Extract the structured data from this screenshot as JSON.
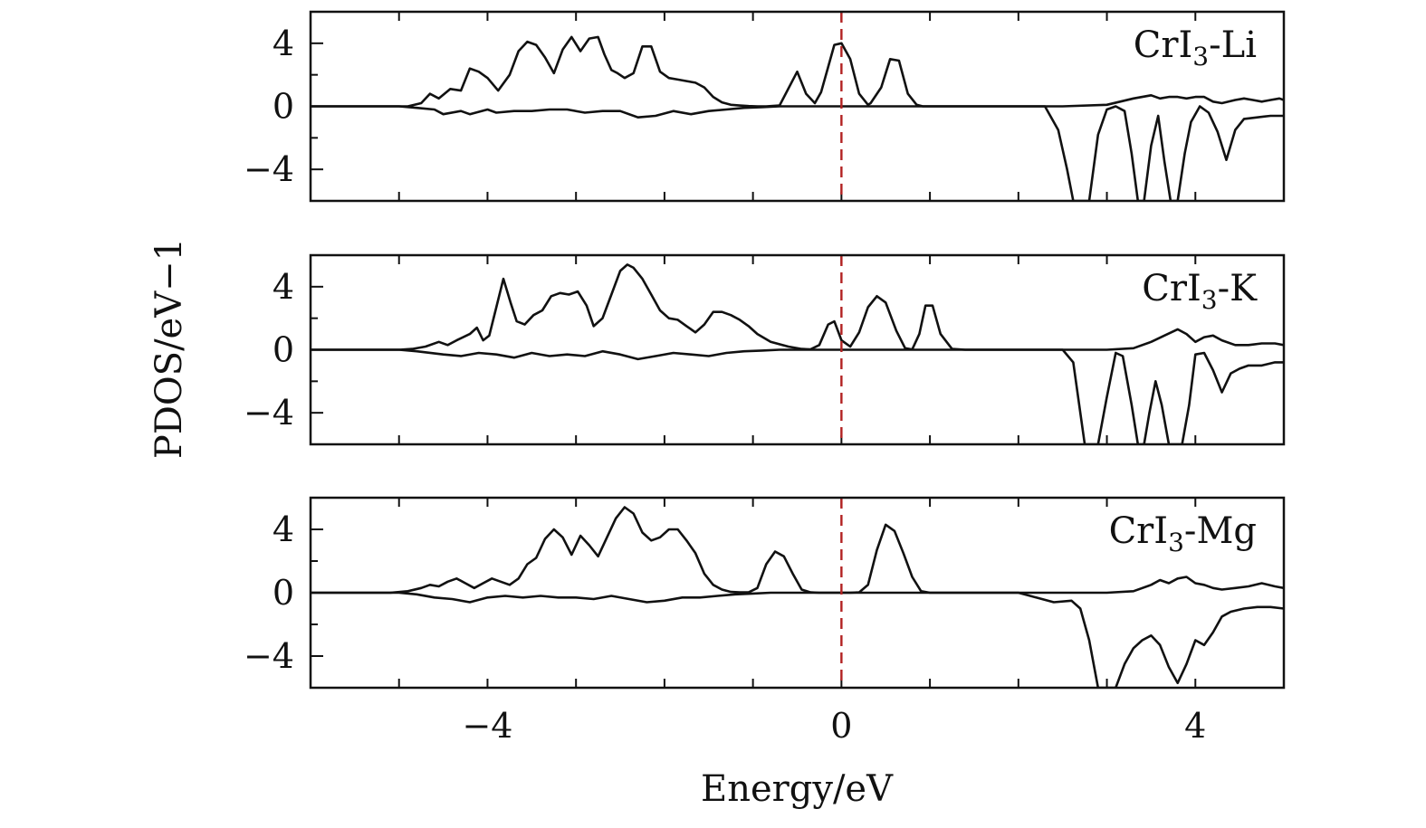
{
  "chart_data": {
    "type": "line",
    "xlabel": "Energy/eV",
    "ylabel": "PDOS/eV−1",
    "xlim": [
      -6,
      5
    ],
    "xticks": [
      -4,
      0,
      4
    ],
    "x_minor_ticks": [
      -6,
      -5,
      -4,
      -3,
      -2,
      -1,
      0,
      1,
      2,
      3,
      4,
      5
    ],
    "reference_line": {
      "x": 0,
      "style": "dashed",
      "color": "#b22222"
    },
    "legend": "none",
    "panels": [
      {
        "label": "CrI3-Li",
        "ylim": [
          -6,
          6
        ],
        "yticks": [
          4,
          0,
          -4
        ],
        "ytick_labels": [
          "4",
          "0",
          "−4"
        ],
        "series": [
          {
            "role": "spin-up",
            "x": [
              -6,
              -5,
              -4.9,
              -4.75,
              -4.65,
              -4.55,
              -4.42,
              -4.3,
              -4.2,
              -4.1,
              -4.0,
              -3.88,
              -3.75,
              -3.65,
              -3.55,
              -3.45,
              -3.35,
              -3.25,
              -3.15,
              -3.05,
              -2.95,
              -2.85,
              -2.75,
              -2.68,
              -2.6,
              -2.53,
              -2.45,
              -2.35,
              -2.25,
              -2.15,
              -2.05,
              -1.95,
              -1.85,
              -1.75,
              -1.65,
              -1.55,
              -1.45,
              -1.35,
              -1.25,
              -1.15,
              -1.05,
              -0.95,
              -0.85,
              -0.7,
              -0.5,
              -0.4,
              -0.3,
              -0.23,
              -0.15,
              -0.08,
              0,
              0.1,
              0.2,
              0.3,
              0.33,
              0.45,
              0.55,
              0.65,
              0.75,
              0.85,
              0.92,
              1.0,
              1.1,
              1.2,
              1.35,
              2,
              2.5,
              3,
              3.3,
              3.5,
              3.6,
              3.7,
              3.8,
              3.9,
              4.0,
              4.1,
              4.2,
              4.3,
              4.45,
              4.55,
              4.65,
              4.75,
              4.85,
              4.95,
              5
            ],
            "values": [
              0,
              0,
              0,
              0.2,
              0.8,
              0.5,
              1.1,
              1.0,
              2.4,
              2.2,
              1.8,
              1.0,
              2.0,
              3.5,
              4.1,
              3.9,
              3.1,
              2.1,
              3.6,
              4.4,
              3.5,
              4.3,
              4.4,
              3.3,
              2.3,
              2.1,
              1.8,
              2.1,
              3.8,
              3.8,
              2.2,
              1.8,
              1.7,
              1.6,
              1.5,
              1.2,
              0.6,
              0.25,
              0.1,
              0.05,
              0.02,
              0,
              0,
              0.05,
              2.2,
              0.8,
              0.2,
              0.9,
              2.5,
              3.9,
              4.0,
              3.0,
              0.8,
              0.1,
              0.2,
              1.2,
              3.0,
              2.9,
              0.8,
              0.1,
              0,
              0,
              0,
              0,
              0,
              0,
              0,
              0.1,
              0.5,
              0.7,
              0.5,
              0.6,
              0.6,
              0.5,
              0.6,
              0.6,
              0.3,
              0.2,
              0.4,
              0.5,
              0.4,
              0.3,
              0.4,
              0.5,
              0.4
            ]
          },
          {
            "role": "spin-down",
            "x": [
              -6,
              -5,
              -4.8,
              -4.6,
              -4.5,
              -4.3,
              -4.2,
              -4.0,
              -3.9,
              -3.7,
              -3.5,
              -3.3,
              -3.1,
              -2.9,
              -2.7,
              -2.5,
              -2.3,
              -2.1,
              -1.9,
              -1.7,
              -1.5,
              -1.3,
              -1.1,
              -0.9,
              -0.7,
              2.3,
              2.45,
              2.55,
              2.62,
              2.7,
              2.8,
              2.9,
              3.0,
              3.1,
              3.2,
              3.28,
              3.35,
              3.42,
              3.5,
              3.58,
              3.65,
              3.72,
              3.8,
              3.88,
              3.95,
              4.05,
              4.15,
              4.25,
              4.35,
              4.45,
              4.55,
              4.7,
              4.85,
              5
            ],
            "values": [
              0,
              0,
              -0.1,
              -0.2,
              -0.5,
              -0.3,
              -0.5,
              -0.2,
              -0.4,
              -0.3,
              -0.3,
              -0.2,
              -0.2,
              -0.4,
              -0.3,
              -0.3,
              -0.7,
              -0.6,
              -0.3,
              -0.5,
              -0.3,
              -0.2,
              -0.1,
              -0.05,
              0,
              0,
              -1.5,
              -4.0,
              -6,
              -6,
              -6,
              -1.8,
              -0.2,
              0,
              -0.3,
              -3.0,
              -6,
              -6,
              -2.5,
              -0.6,
              -3.5,
              -6,
              -6,
              -3.0,
              -1.0,
              0,
              -0.4,
              -1.6,
              -3.4,
              -1.5,
              -0.8,
              -0.7,
              -0.6,
              -0.6
            ]
          }
        ]
      },
      {
        "label": "CrI3-K",
        "ylim": [
          -6,
          6
        ],
        "yticks": [
          4,
          0,
          -4
        ],
        "ytick_labels": [
          "4",
          "0",
          "−4"
        ],
        "series": [
          {
            "role": "spin-up",
            "x": [
              -6,
              -5,
              -4.85,
              -4.7,
              -4.55,
              -4.45,
              -4.35,
              -4.2,
              -4.12,
              -4.05,
              -3.98,
              -3.9,
              -3.82,
              -3.74,
              -3.67,
              -3.58,
              -3.48,
              -3.38,
              -3.28,
              -3.18,
              -3.08,
              -2.98,
              -2.88,
              -2.8,
              -2.7,
              -2.6,
              -2.5,
              -2.42,
              -2.35,
              -2.25,
              -2.15,
              -2.05,
              -1.95,
              -1.85,
              -1.75,
              -1.65,
              -1.55,
              -1.45,
              -1.35,
              -1.25,
              -1.15,
              -1.05,
              -0.95,
              -0.8,
              -0.6,
              -0.45,
              -0.35,
              -0.25,
              -0.15,
              -0.08,
              0,
              0.1,
              0.2,
              0.3,
              0.4,
              0.5,
              0.62,
              0.72,
              0.8,
              0.88,
              0.95,
              1.03,
              1.12,
              1.25,
              1.4,
              2,
              2.5,
              3,
              3.3,
              3.5,
              3.65,
              3.8,
              3.9,
              4.0,
              4.1,
              4.2,
              4.3,
              4.45,
              4.6,
              4.75,
              4.9,
              5
            ],
            "values": [
              0,
              0,
              0.05,
              0.2,
              0.5,
              0.3,
              0.6,
              1.0,
              1.4,
              0.6,
              0.9,
              2.7,
              4.5,
              3.0,
              1.8,
              1.6,
              2.2,
              2.5,
              3.4,
              3.6,
              3.5,
              3.7,
              2.8,
              1.5,
              2.0,
              3.5,
              5.0,
              5.4,
              5.2,
              4.5,
              3.5,
              2.5,
              2.0,
              1.9,
              1.5,
              1.1,
              1.6,
              2.4,
              2.4,
              2.2,
              1.9,
              1.5,
              1.0,
              0.5,
              0.2,
              0.05,
              0.03,
              0.3,
              1.6,
              1.8,
              0.6,
              0.2,
              1.1,
              2.7,
              3.4,
              3.0,
              1.2,
              0.1,
              0.02,
              1.0,
              2.8,
              2.8,
              1.0,
              0.05,
              0,
              0,
              0,
              0,
              0.1,
              0.5,
              0.9,
              1.3,
              1.0,
              0.5,
              0.8,
              0.9,
              0.6,
              0.3,
              0.3,
              0.4,
              0.4,
              0.3
            ]
          },
          {
            "role": "spin-down",
            "x": [
              -6,
              -5,
              -4.8,
              -4.5,
              -4.3,
              -4.1,
              -3.9,
              -3.7,
              -3.5,
              -3.3,
              -3.1,
              -2.9,
              -2.7,
              -2.5,
              -2.3,
              -2.1,
              -1.9,
              -1.7,
              -1.5,
              -1.3,
              -1.1,
              -0.9,
              -0.7,
              2.5,
              2.62,
              2.7,
              2.75,
              2.82,
              2.9,
              3.0,
              3.1,
              3.18,
              3.28,
              3.35,
              3.42,
              3.48,
              3.55,
              3.62,
              3.7,
              3.78,
              3.85,
              3.93,
              4.0,
              4.1,
              4.2,
              4.3,
              4.4,
              4.5,
              4.6,
              4.75,
              4.9,
              5
            ],
            "values": [
              0,
              0,
              -0.1,
              -0.3,
              -0.4,
              -0.2,
              -0.3,
              -0.5,
              -0.2,
              -0.4,
              -0.3,
              -0.4,
              -0.1,
              -0.3,
              -0.6,
              -0.4,
              -0.2,
              -0.3,
              -0.4,
              -0.2,
              -0.1,
              -0.05,
              0,
              0,
              -0.8,
              -4.0,
              -6,
              -6,
              -6,
              -3.0,
              -0.2,
              -0.4,
              -3.5,
              -6,
              -6,
              -4.0,
              -2.0,
              -3.5,
              -6,
              -6,
              -6,
              -3.5,
              -0.3,
              -0.2,
              -1.3,
              -2.7,
              -1.5,
              -1.2,
              -1.0,
              -1.0,
              -0.8,
              -0.8
            ]
          }
        ]
      },
      {
        "label": "CrI3-Mg",
        "ylim": [
          -6,
          6
        ],
        "yticks": [
          4,
          0,
          -4
        ],
        "ytick_labels": [
          "4",
          "0",
          "−4"
        ],
        "series": [
          {
            "role": "spin-up",
            "x": [
              -6,
              -5.1,
              -4.9,
              -4.75,
              -4.65,
              -4.55,
              -4.45,
              -4.35,
              -4.25,
              -4.15,
              -4.05,
              -3.95,
              -3.85,
              -3.75,
              -3.65,
              -3.55,
              -3.45,
              -3.35,
              -3.25,
              -3.15,
              -3.05,
              -2.95,
              -2.85,
              -2.75,
              -2.65,
              -2.55,
              -2.45,
              -2.35,
              -2.25,
              -2.15,
              -2.05,
              -1.95,
              -1.85,
              -1.75,
              -1.65,
              -1.55,
              -1.45,
              -1.35,
              -1.25,
              -1.15,
              -1.05,
              -0.95,
              -0.85,
              -0.75,
              -0.65,
              -0.55,
              -0.45,
              -0.35,
              -0.25,
              -0.1,
              0,
              0.1,
              0.2,
              0.3,
              0.4,
              0.5,
              0.6,
              0.7,
              0.8,
              0.9,
              1.0,
              1.1,
              1.3,
              2,
              2.5,
              3,
              3.3,
              3.5,
              3.6,
              3.7,
              3.8,
              3.9,
              4.0,
              4.1,
              4.2,
              4.3,
              4.45,
              4.6,
              4.75,
              4.9,
              5
            ],
            "values": [
              0,
              0,
              0.1,
              0.3,
              0.5,
              0.4,
              0.7,
              0.9,
              0.6,
              0.3,
              0.6,
              0.9,
              0.7,
              0.5,
              0.9,
              1.8,
              2.2,
              3.4,
              4.0,
              3.5,
              2.4,
              3.6,
              3.0,
              2.3,
              3.5,
              4.7,
              5.4,
              5.0,
              3.8,
              3.3,
              3.5,
              4.0,
              4.0,
              3.3,
              2.5,
              1.2,
              0.5,
              0.2,
              0.05,
              0.03,
              0.02,
              0.3,
              1.8,
              2.6,
              2.3,
              1.2,
              0.2,
              0.02,
              0,
              0,
              0,
              0,
              0.02,
              0.5,
              2.7,
              4.3,
              3.9,
              2.5,
              1.0,
              0.1,
              0,
              0,
              0,
              0,
              0,
              0,
              0.1,
              0.5,
              0.8,
              0.6,
              0.9,
              1.0,
              0.6,
              0.5,
              0.3,
              0.2,
              0.3,
              0.4,
              0.6,
              0.4,
              0.3
            ]
          },
          {
            "role": "spin-down",
            "x": [
              -6,
              -5,
              -4.8,
              -4.6,
              -4.4,
              -4.2,
              -4.0,
              -3.8,
              -3.6,
              -3.4,
              -3.2,
              -3.0,
              -2.8,
              -2.6,
              -2.4,
              -2.2,
              -2.0,
              -1.8,
              -1.6,
              -1.4,
              -1.2,
              -1.0,
              -0.8,
              2.0,
              2.2,
              2.4,
              2.6,
              2.7,
              2.8,
              2.9,
              3.0,
              3.1,
              3.2,
              3.3,
              3.4,
              3.5,
              3.6,
              3.7,
              3.8,
              3.9,
              4.0,
              4.1,
              4.2,
              4.3,
              4.4,
              4.55,
              4.7,
              4.85,
              5
            ],
            "values": [
              0,
              0,
              -0.1,
              -0.3,
              -0.4,
              -0.6,
              -0.3,
              -0.2,
              -0.3,
              -0.2,
              -0.3,
              -0.3,
              -0.4,
              -0.2,
              -0.4,
              -0.6,
              -0.5,
              -0.3,
              -0.3,
              -0.2,
              -0.1,
              -0.05,
              0,
              0,
              -0.3,
              -0.6,
              -0.5,
              -1.0,
              -3.0,
              -6,
              -6,
              -6,
              -4.5,
              -3.5,
              -3.0,
              -2.7,
              -3.3,
              -4.7,
              -5.7,
              -4.5,
              -3.0,
              -3.3,
              -2.5,
              -1.5,
              -1.2,
              -1.0,
              -0.9,
              -0.9,
              -1.0
            ]
          }
        ]
      }
    ]
  }
}
